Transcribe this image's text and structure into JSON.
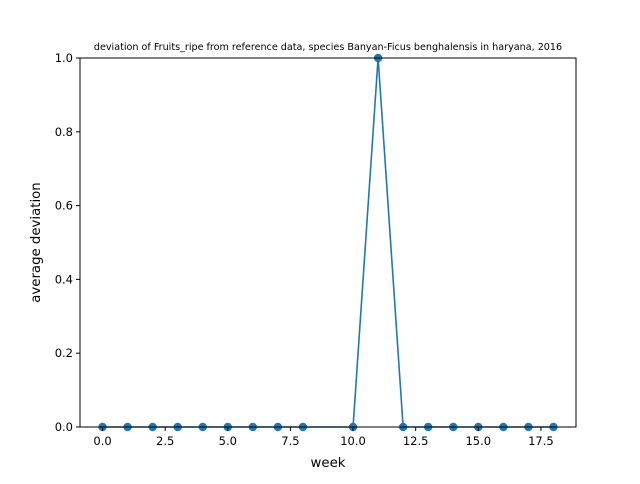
{
  "chart_data": {
    "type": "line",
    "title": "deviation of Fruits_ripe from reference data, species Banyan-Ficus benghalensis in haryana, 2016",
    "xlabel": "week",
    "ylabel": "average deviation",
    "xlim": [
      -0.9,
      18.9
    ],
    "ylim": [
      0,
      1
    ],
    "x_ticks": [
      0,
      2.5,
      5,
      7.5,
      10,
      12.5,
      15,
      17.5
    ],
    "x_tick_labels": [
      "0.0",
      "2.5",
      "5.0",
      "7.5",
      "10.0",
      "12.5",
      "15.0",
      "17.5"
    ],
    "y_ticks": [
      0,
      0.2,
      0.4,
      0.6,
      0.8,
      1.0
    ],
    "y_tick_labels": [
      "0.0",
      "0.2",
      "0.4",
      "0.6",
      "0.8",
      "1.0"
    ],
    "grid": false,
    "legend": "none",
    "series": [
      {
        "color": "#1f77b4",
        "marker": "circle",
        "x": [
          0,
          1,
          2,
          3,
          4,
          5,
          6,
          7,
          8,
          10,
          11,
          12,
          13,
          14,
          15,
          16,
          17,
          18
        ],
        "y": [
          0,
          0,
          0,
          0,
          0,
          0,
          0,
          0,
          0,
          0,
          1,
          0,
          0,
          0,
          0,
          0,
          0,
          0
        ]
      }
    ]
  }
}
